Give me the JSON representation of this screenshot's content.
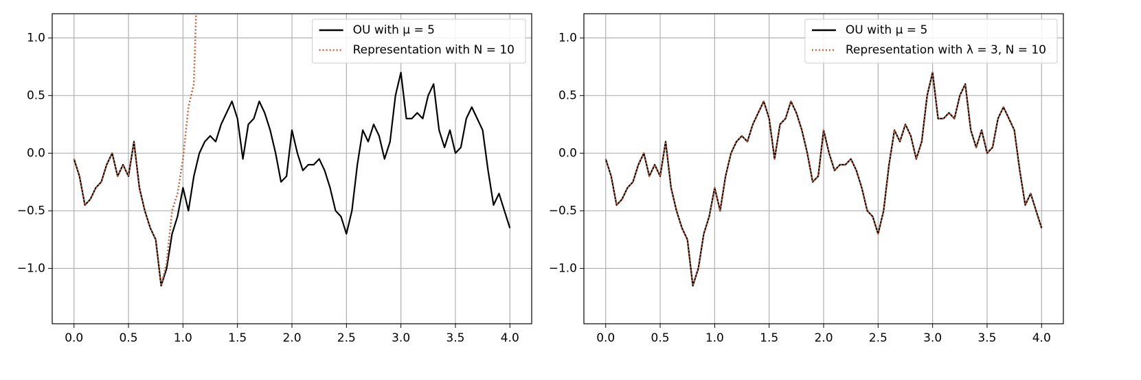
{
  "chart_data": [
    {
      "type": "line",
      "grid": true,
      "legend": "upper right",
      "xlim": [
        -0.2,
        4.2
      ],
      "ylim": [
        -1.48,
        1.21
      ],
      "xticks": [
        {
          "value": 0,
          "label": "0.0"
        },
        0.5,
        {
          "value": 1,
          "label": "1.0"
        },
        1.5,
        {
          "value": 2,
          "label": "2.0"
        },
        2.5,
        {
          "value": 3,
          "label": "3.0"
        },
        3.5,
        {
          "value": 4,
          "label": "4.0"
        }
      ],
      "yticks": [
        {
          "value": -1,
          "label": "−1.0"
        },
        {
          "value": -0.5,
          "label": "−0.5"
        },
        {
          "value": 0,
          "label": "0.0"
        },
        0.5,
        {
          "value": 1,
          "label": "1.0"
        }
      ],
      "series": [
        {
          "name": "OU with μ = 5",
          "color": "#000000",
          "linestyle": "solid",
          "x": [
            0,
            0.05,
            0.1,
            0.15,
            0.2,
            0.25,
            0.3,
            0.35,
            0.4,
            0.45,
            0.5,
            0.55,
            0.6,
            0.65,
            0.7,
            0.75,
            0.8,
            0.85,
            0.9,
            0.95,
            1,
            1.05,
            1.1,
            1.15,
            1.2,
            1.25,
            1.3,
            1.35,
            1.4,
            1.45,
            1.5,
            1.55,
            1.6,
            1.65,
            1.7,
            1.75,
            1.8,
            1.85,
            1.9,
            1.95,
            2,
            2.05,
            2.1,
            2.15,
            2.2,
            2.25,
            2.3,
            2.35,
            2.4,
            2.45,
            2.5,
            2.55,
            2.6,
            2.65,
            2.7,
            2.75,
            2.8,
            2.85,
            2.9,
            2.95,
            3,
            3.05,
            3.1,
            3.15,
            3.2,
            3.25,
            3.3,
            3.35,
            3.4,
            3.45,
            3.5,
            3.55,
            3.6,
            3.65,
            3.7,
            3.75,
            3.8,
            3.85,
            3.9,
            3.95,
            4
          ],
          "values": [
            -0.05,
            -0.2,
            -0.45,
            -0.4,
            -0.3,
            -0.25,
            -0.1,
            0,
            -0.2,
            -0.1,
            -0.2,
            0.1,
            -0.3,
            -0.5,
            -0.65,
            -0.75,
            -1.15,
            -1,
            -0.7,
            -0.55,
            -0.3,
            -0.5,
            -0.2,
            0,
            0.1,
            0.15,
            0.1,
            0.25,
            0.35,
            0.45,
            0.3,
            -0.05,
            0.25,
            0.3,
            0.45,
            0.35,
            0.2,
            0,
            -0.25,
            -0.2,
            0.2,
            0,
            -0.15,
            -0.1,
            -0.1,
            -0.05,
            -0.15,
            -0.3,
            -0.5,
            -0.55,
            -0.7,
            -0.5,
            -0.1,
            0.2,
            0.1,
            0.25,
            0.15,
            -0.05,
            0.1,
            0.5,
            0.7,
            0.3,
            0.3,
            0.35,
            0.3,
            0.5,
            0.6,
            0.2,
            0.05,
            0.2,
            0,
            0.05,
            0.3,
            0.4,
            0.3,
            0.2,
            -0.15,
            -0.45,
            -0.35,
            -0.5,
            -0.65
          ]
        },
        {
          "name": "Representation with N = 10",
          "color": "#c0623e",
          "linestyle": "dotted",
          "x": [
            0,
            0.05,
            0.1,
            0.15,
            0.2,
            0.25,
            0.3,
            0.35,
            0.4,
            0.45,
            0.5,
            0.55,
            0.6,
            0.65,
            0.7,
            0.75,
            0.8,
            0.85,
            0.9,
            0.95,
            1,
            1.05,
            1.1,
            1.12
          ],
          "values": [
            -0.05,
            -0.2,
            -0.45,
            -0.4,
            -0.3,
            -0.25,
            -0.1,
            0,
            -0.2,
            -0.1,
            -0.2,
            0.1,
            -0.3,
            -0.5,
            -0.65,
            -0.75,
            -1.15,
            -0.95,
            -0.5,
            -0.35,
            -0.05,
            0.4,
            0.6,
            1.2
          ]
        }
      ]
    },
    {
      "type": "line",
      "grid": true,
      "legend": "upper right",
      "xlim": [
        -0.2,
        4.2
      ],
      "ylim": [
        -1.48,
        1.21
      ],
      "xticks": [
        {
          "value": 0,
          "label": "0.0"
        },
        0.5,
        {
          "value": 1,
          "label": "1.0"
        },
        1.5,
        {
          "value": 2,
          "label": "2.0"
        },
        2.5,
        {
          "value": 3,
          "label": "3.0"
        },
        3.5,
        {
          "value": 4,
          "label": "4.0"
        }
      ],
      "yticks": [
        {
          "value": -1,
          "label": "−1.0"
        },
        {
          "value": -0.5,
          "label": "−0.5"
        },
        {
          "value": 0,
          "label": "0.0"
        },
        0.5,
        {
          "value": 1,
          "label": "1.0"
        }
      ],
      "series": [
        {
          "name": "OU with μ = 5",
          "color": "#000000",
          "linestyle": "solid",
          "x": [
            0,
            0.05,
            0.1,
            0.15,
            0.2,
            0.25,
            0.3,
            0.35,
            0.4,
            0.45,
            0.5,
            0.55,
            0.6,
            0.65,
            0.7,
            0.75,
            0.8,
            0.85,
            0.9,
            0.95,
            1,
            1.05,
            1.1,
            1.15,
            1.2,
            1.25,
            1.3,
            1.35,
            1.4,
            1.45,
            1.5,
            1.55,
            1.6,
            1.65,
            1.7,
            1.75,
            1.8,
            1.85,
            1.9,
            1.95,
            2,
            2.05,
            2.1,
            2.15,
            2.2,
            2.25,
            2.3,
            2.35,
            2.4,
            2.45,
            2.5,
            2.55,
            2.6,
            2.65,
            2.7,
            2.75,
            2.8,
            2.85,
            2.9,
            2.95,
            3,
            3.05,
            3.1,
            3.15,
            3.2,
            3.25,
            3.3,
            3.35,
            3.4,
            3.45,
            3.5,
            3.55,
            3.6,
            3.65,
            3.7,
            3.75,
            3.8,
            3.85,
            3.9,
            3.95,
            4
          ],
          "values": [
            -0.05,
            -0.2,
            -0.45,
            -0.4,
            -0.3,
            -0.25,
            -0.1,
            0,
            -0.2,
            -0.1,
            -0.2,
            0.1,
            -0.3,
            -0.5,
            -0.65,
            -0.75,
            -1.15,
            -1,
            -0.7,
            -0.55,
            -0.3,
            -0.5,
            -0.2,
            0,
            0.1,
            0.15,
            0.1,
            0.25,
            0.35,
            0.45,
            0.3,
            -0.05,
            0.25,
            0.3,
            0.45,
            0.35,
            0.2,
            0,
            -0.25,
            -0.2,
            0.2,
            0,
            -0.15,
            -0.1,
            -0.1,
            -0.05,
            -0.15,
            -0.3,
            -0.5,
            -0.55,
            -0.7,
            -0.5,
            -0.1,
            0.2,
            0.1,
            0.25,
            0.15,
            -0.05,
            0.1,
            0.5,
            0.7,
            0.3,
            0.3,
            0.35,
            0.3,
            0.5,
            0.6,
            0.2,
            0.05,
            0.2,
            0,
            0.05,
            0.3,
            0.4,
            0.3,
            0.2,
            -0.15,
            -0.45,
            -0.35,
            -0.5,
            -0.65
          ]
        },
        {
          "name": "Representation with λ = 3, N = 10",
          "color": "#c0623e",
          "linestyle": "dotted",
          "x": [
            0,
            0.05,
            0.1,
            0.15,
            0.2,
            0.25,
            0.3,
            0.35,
            0.4,
            0.45,
            0.5,
            0.55,
            0.6,
            0.65,
            0.7,
            0.75,
            0.8,
            0.85,
            0.9,
            0.95,
            1,
            1.05,
            1.1,
            1.15,
            1.2,
            1.25,
            1.3,
            1.35,
            1.4,
            1.45,
            1.5,
            1.55,
            1.6,
            1.65,
            1.7,
            1.75,
            1.8,
            1.85,
            1.9,
            1.95,
            2,
            2.05,
            2.1,
            2.15,
            2.2,
            2.25,
            2.3,
            2.35,
            2.4,
            2.45,
            2.5,
            2.55,
            2.6,
            2.65,
            2.7,
            2.75,
            2.8,
            2.85,
            2.9,
            2.95,
            3,
            3.05,
            3.1,
            3.15,
            3.2,
            3.25,
            3.3,
            3.35,
            3.4,
            3.45,
            3.5,
            3.55,
            3.6,
            3.65,
            3.7,
            3.75,
            3.8,
            3.85,
            3.9,
            3.95,
            4
          ],
          "values": [
            -0.05,
            -0.2,
            -0.45,
            -0.4,
            -0.3,
            -0.25,
            -0.1,
            0,
            -0.2,
            -0.1,
            -0.2,
            0.1,
            -0.3,
            -0.5,
            -0.65,
            -0.75,
            -1.15,
            -1,
            -0.7,
            -0.55,
            -0.3,
            -0.5,
            -0.2,
            0,
            0.1,
            0.15,
            0.1,
            0.25,
            0.35,
            0.45,
            0.3,
            -0.05,
            0.25,
            0.3,
            0.45,
            0.35,
            0.2,
            0,
            -0.25,
            -0.2,
            0.2,
            0,
            -0.15,
            -0.1,
            -0.1,
            -0.05,
            -0.15,
            -0.3,
            -0.5,
            -0.55,
            -0.7,
            -0.5,
            -0.1,
            0.2,
            0.1,
            0.25,
            0.15,
            -0.05,
            0.1,
            0.5,
            0.7,
            0.3,
            0.3,
            0.35,
            0.3,
            0.5,
            0.6,
            0.2,
            0.05,
            0.2,
            0,
            0.05,
            0.3,
            0.4,
            0.3,
            0.2,
            -0.15,
            -0.45,
            -0.35,
            -0.5,
            -0.65
          ]
        }
      ]
    }
  ]
}
